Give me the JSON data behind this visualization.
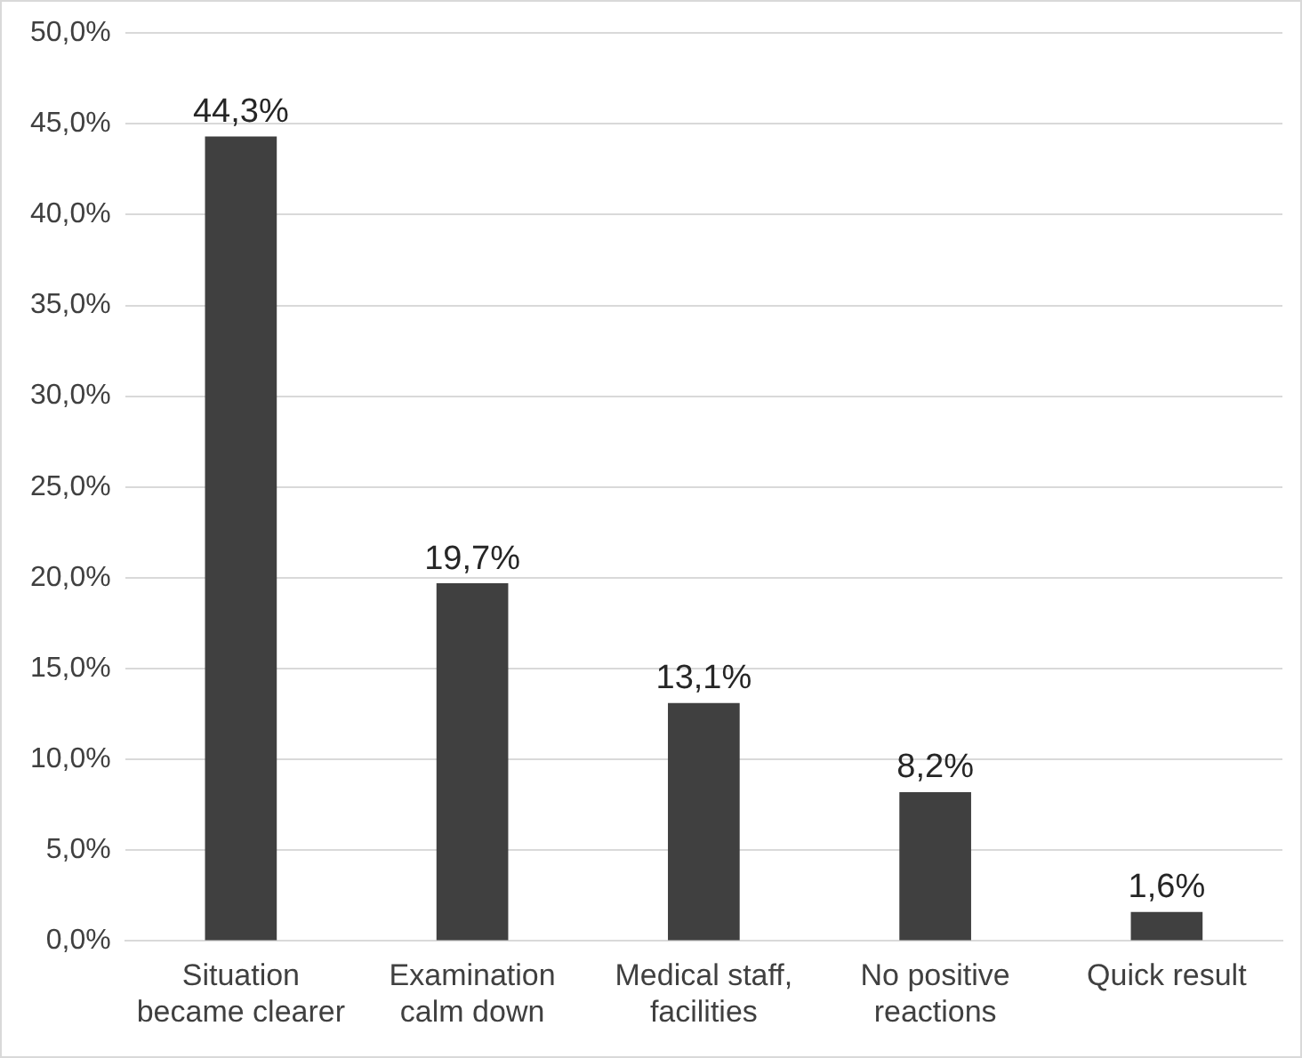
{
  "chart_data": {
    "type": "bar",
    "categories": [
      "Situation became clearer",
      "Examination calm down",
      "Medical staff, facilities",
      "No positive reactions",
      "Quick result"
    ],
    "values": [
      44.3,
      19.7,
      13.1,
      8.2,
      1.6
    ],
    "value_labels": [
      "44,3%",
      "19,7%",
      "13,1%",
      "8,2%",
      "1,6%"
    ],
    "color": "#404040",
    "ylim": [
      0,
      50
    ],
    "yticks": [
      {
        "value": 0,
        "label": "0,0%"
      },
      {
        "value": 5,
        "label": "5,0%"
      },
      {
        "value": 10,
        "label": "10,0%"
      },
      {
        "value": 15,
        "label": "15,0%"
      },
      {
        "value": 20,
        "label": "20,0%"
      },
      {
        "value": 25,
        "label": "25,0%"
      },
      {
        "value": 30,
        "label": "30,0%"
      },
      {
        "value": 35,
        "label": "35,0%"
      },
      {
        "value": 40,
        "label": "40,0%"
      },
      {
        "value": 45,
        "label": "45,0%"
      },
      {
        "value": 50,
        "label": "50,0%"
      }
    ],
    "grid": "y"
  }
}
